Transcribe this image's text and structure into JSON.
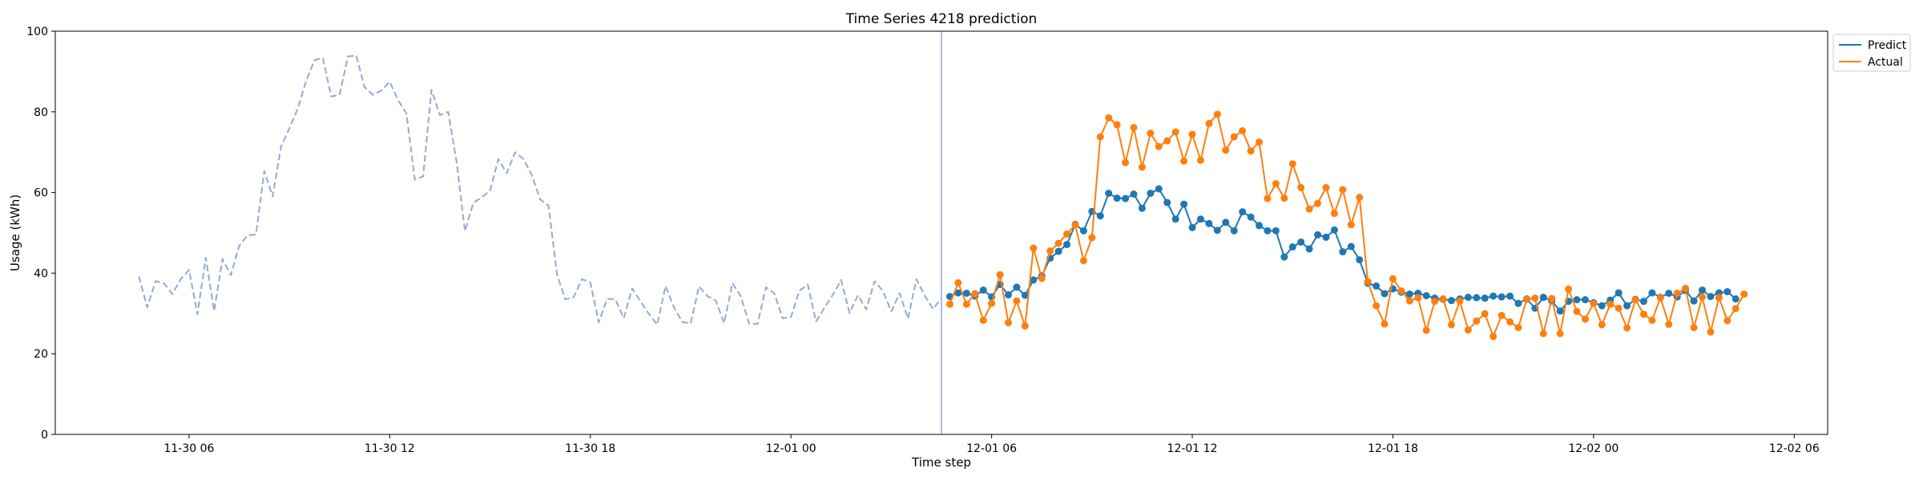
{
  "chart_data": {
    "type": "line",
    "title": "Time Series 4218 prediction",
    "xlabel": "Time step",
    "ylabel": "Usage (kWh)",
    "ylim": [
      0,
      100
    ],
    "yticks": [
      0,
      20,
      40,
      60,
      80,
      100
    ],
    "xlim": [
      "2023-11-30T02:00",
      "2023-12-02T07:00"
    ],
    "xticks": [
      {
        "t": "2023-11-30T06:00",
        "label": "11-30 06"
      },
      {
        "t": "2023-11-30T12:00",
        "label": "11-30 12"
      },
      {
        "t": "2023-11-30T18:00",
        "label": "11-30 18"
      },
      {
        "t": "2023-12-01T00:00",
        "label": "12-01 00"
      },
      {
        "t": "2023-12-01T06:00",
        "label": "12-01 06"
      },
      {
        "t": "2023-12-01T12:00",
        "label": "12-01 12"
      },
      {
        "t": "2023-12-01T18:00",
        "label": "12-01 18"
      },
      {
        "t": "2023-12-02T00:00",
        "label": "12-02 00"
      },
      {
        "t": "2023-12-02T06:00",
        "label": "12-02 06"
      }
    ],
    "interval_minutes": 15,
    "grid": false,
    "legend_position": "upper right (outside)",
    "forecast_start": "2023-12-01T04:30",
    "series": [
      {
        "name": "",
        "role": "history",
        "style": "dashed",
        "color": "#8faadc",
        "start": "2023-11-30T04:30",
        "values": [
          39.2,
          31.5,
          38.0,
          37.5,
          34.8,
          38.5,
          40.8,
          29.8,
          43.8,
          30.6,
          43.5,
          39.5,
          46.8,
          49.4,
          49.6,
          65.3,
          59.0,
          71.4,
          75.9,
          80.8,
          87.6,
          92.8,
          93.4,
          83.8,
          84.2,
          93.7,
          94.0,
          86.1,
          84.2,
          85.3,
          87.5,
          82.9,
          79.6,
          63.2,
          64.0,
          85.5,
          79.2,
          80.0,
          67.6,
          50.4,
          57.4,
          58.8,
          60.4,
          68.3,
          64.8,
          70.0,
          68.3,
          64.3,
          58.3,
          56.7,
          39.8,
          33.5,
          34.0,
          38.5,
          37.7,
          27.8,
          33.6,
          33.5,
          28.8,
          36.2,
          33.0,
          29.9,
          27.2,
          36.8,
          31.5,
          27.9,
          27.5,
          36.7,
          34.3,
          33.2,
          27.6,
          37.5,
          34.3,
          27.4,
          27.4,
          36.5,
          35.0,
          28.8,
          29.1,
          35.6,
          37.2,
          28.0,
          31.4,
          34.6,
          38.3,
          30.1,
          34.5,
          31.0,
          38.0,
          35.6,
          30.5,
          35.0,
          28.7,
          38.5,
          34.4,
          31.1,
          33.8
        ]
      },
      {
        "name": "Predict",
        "role": "prediction",
        "style": "solid+markers",
        "color": "#1f77b4",
        "start": "2023-12-01T04:45",
        "values": [
          34.2,
          35.1,
          35.0,
          34.3,
          35.8,
          34.1,
          37.2,
          34.6,
          36.5,
          34.5,
          38.3,
          39.3,
          43.7,
          45.4,
          47.1,
          52.1,
          50.5,
          55.3,
          54.2,
          59.8,
          58.6,
          58.5,
          59.6,
          56.1,
          59.8,
          60.9,
          57.5,
          53.4,
          57.1,
          51.3,
          53.4,
          52.3,
          50.6,
          52.6,
          50.5,
          55.2,
          53.9,
          51.8,
          50.5,
          50.5,
          44.0,
          46.5,
          47.7,
          46.0,
          49.5,
          48.9,
          50.7,
          45.3,
          46.6,
          43.3,
          37.5,
          36.8,
          34.9,
          36.1,
          35.3,
          34.8,
          35.0,
          34.4,
          33.8,
          33.5,
          33.2,
          33.6,
          34.0,
          33.9,
          33.8,
          34.3,
          34.1,
          34.3,
          32.5,
          33.6,
          31.3,
          34.0,
          33.1,
          30.6,
          33.0,
          33.4,
          33.4,
          32.7,
          31.9,
          33.3,
          35.1,
          31.9,
          33.5,
          33.0,
          35.1,
          34.0,
          35.0,
          34.1,
          35.7,
          33.1,
          35.8,
          34.2,
          35.1,
          35.4,
          33.6
        ]
      },
      {
        "name": "Actual",
        "role": "actual",
        "style": "solid+markers",
        "color": "#ff7f0e",
        "start": "2023-12-01T04:45",
        "values": [
          32.3,
          37.6,
          32.3,
          34.9,
          28.3,
          32.5,
          39.6,
          27.7,
          33.1,
          26.9,
          46.2,
          38.7,
          45.5,
          47.4,
          49.7,
          52.0,
          43.1,
          48.8,
          73.8,
          78.5,
          76.8,
          67.4,
          76.1,
          66.3,
          74.7,
          71.4,
          72.8,
          75.0,
          67.8,
          74.4,
          68.0,
          77.1,
          79.4,
          70.5,
          73.8,
          75.3,
          70.3,
          72.5,
          58.5,
          62.2,
          58.6,
          67.1,
          61.2,
          55.9,
          57.3,
          61.2,
          54.8,
          60.7,
          52.0,
          58.8,
          37.9,
          31.9,
          27.4,
          38.6,
          35.6,
          33.1,
          33.9,
          25.8,
          33.0,
          33.6,
          27.2,
          33.1,
          25.9,
          28.1,
          29.9,
          24.3,
          29.5,
          27.9,
          26.5,
          33.5,
          33.8,
          25.0,
          33.7,
          25.0,
          36.0,
          30.5,
          28.6,
          32.5,
          27.2,
          32.3,
          31.3,
          26.4,
          33.4,
          29.8,
          28.3,
          33.9,
          27.3,
          35.0,
          36.2,
          26.5,
          34.1,
          25.4,
          33.9,
          28.2,
          31.2,
          34.8
        ]
      }
    ]
  }
}
